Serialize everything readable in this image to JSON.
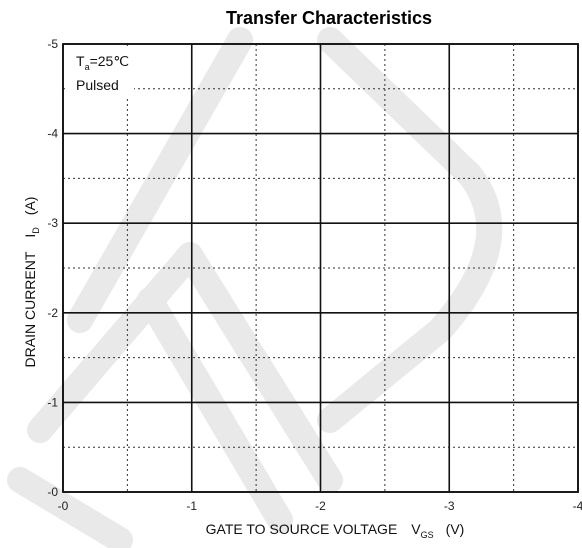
{
  "chart_data": {
    "type": "line",
    "title": "Transfer Characteristics",
    "xlabel": "GATE TO SOURCE VOLTAGE V_GS (V)",
    "xlabel_main": "GATE TO SOURCE VOLTAGE",
    "xlabel_symbol": "V",
    "xlabel_sub": "GS",
    "xlabel_unit": "(V)",
    "ylabel": "DRAIN CURRENT I_D (A)",
    "ylabel_main": "DRAIN CURRENT",
    "ylabel_symbol": "I",
    "ylabel_sub": "D",
    "ylabel_unit": "(A)",
    "xlim": [
      0,
      -4
    ],
    "ylim": [
      0,
      -5
    ],
    "x_major_ticks": [
      0,
      -1,
      -2,
      -3,
      -4
    ],
    "x_tick_labels": [
      "-0",
      "-1",
      "-2",
      "-3",
      "-4"
    ],
    "x_minor_ticks": [
      -0.5,
      -1.5,
      -2.5,
      -3.5
    ],
    "y_major_ticks": [
      0,
      -1,
      -2,
      -3,
      -4,
      -5
    ],
    "y_tick_labels": [
      "-0",
      "-1",
      "-2",
      "-3",
      "-4",
      "-5"
    ],
    "y_minor_ticks": [
      -0.5,
      -1.5,
      -2.5,
      -3.5,
      -4.5
    ],
    "grid": true,
    "series": [],
    "annotations": {
      "temp_symbol": "T",
      "temp_sub": "a",
      "temp_value": "=25℃",
      "mode": "Pulsed"
    }
  }
}
